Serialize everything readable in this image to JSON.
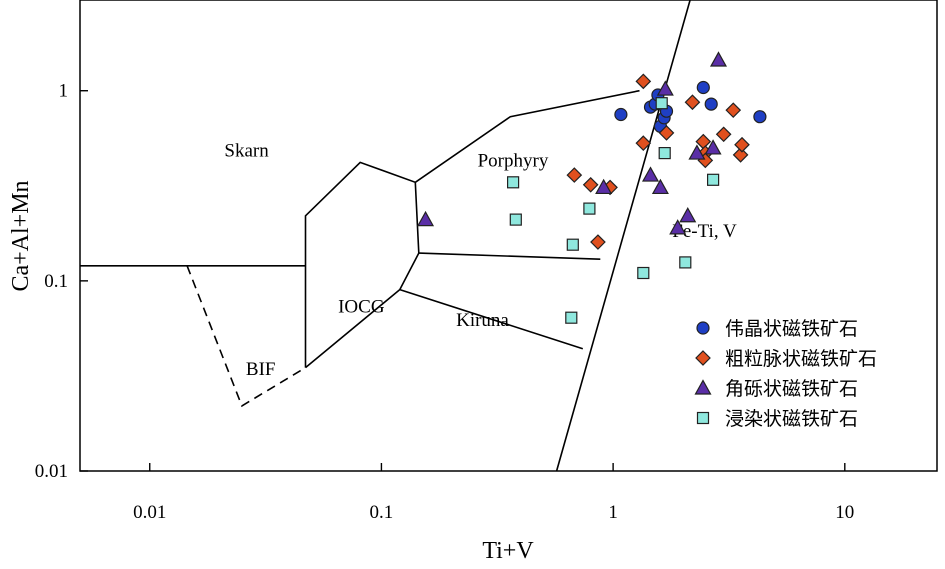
{
  "chart_data": {
    "type": "scatter",
    "x_scale": "log",
    "y_scale": "log",
    "xlabel": "Ti+V",
    "ylabel": "Ca+Al+Mn",
    "xlim": [
      0.005,
      25
    ],
    "ylim": [
      0.01,
      3
    ],
    "x_ticks": [
      {
        "value": 0.01,
        "label": "0.01"
      },
      {
        "value": 0.1,
        "label": "0.1"
      },
      {
        "value": 1,
        "label": "1"
      },
      {
        "value": 10,
        "label": "10"
      }
    ],
    "y_ticks": [
      {
        "value": 0.01,
        "label": "0.01"
      },
      {
        "value": 0.1,
        "label": "0.1"
      },
      {
        "value": 1,
        "label": "1"
      }
    ],
    "region_labels": [
      {
        "text": "Skarn",
        "x": 0.021,
        "y": 0.45
      },
      {
        "text": "IOCG",
        "x": 0.065,
        "y": 0.068
      },
      {
        "text": "BIF",
        "x": 0.026,
        "y": 0.032
      },
      {
        "text": "Kiruna",
        "x": 0.21,
        "y": 0.058
      },
      {
        "text": "Porphyry",
        "x": 0.26,
        "y": 0.4
      },
      {
        "text": "Fe-Ti, V",
        "x": 1.8,
        "y": 0.17
      }
    ],
    "boundaries": [
      {
        "name": "fe-ti-divider",
        "style": "solid",
        "points": [
          [
            0.57,
            0.01
          ],
          [
            2.15,
            3.0
          ]
        ]
      },
      {
        "name": "skarn-bif-divider",
        "style": "solid",
        "points": [
          [
            0.005,
            0.12
          ],
          [
            0.047,
            0.12
          ]
        ]
      },
      {
        "name": "iocg-outline",
        "style": "solid",
        "points": [
          [
            0.047,
            0.035
          ],
          [
            0.047,
            0.22
          ],
          [
            0.081,
            0.42
          ],
          [
            0.14,
            0.33
          ],
          [
            0.145,
            0.14
          ],
          [
            0.12,
            0.09
          ],
          [
            0.047,
            0.035
          ]
        ]
      },
      {
        "name": "porphyry-upper",
        "style": "solid",
        "points": [
          [
            0.14,
            0.33
          ],
          [
            0.36,
            0.73
          ],
          [
            1.3,
            1.0
          ]
        ]
      },
      {
        "name": "porphyry-kiruna-divider",
        "style": "solid",
        "points": [
          [
            0.145,
            0.14
          ],
          [
            0.88,
            0.13
          ]
        ]
      },
      {
        "name": "kiruna-lower",
        "style": "solid",
        "points": [
          [
            0.12,
            0.09
          ],
          [
            0.74,
            0.044
          ]
        ]
      },
      {
        "name": "bif-dashed",
        "style": "dashed",
        "points": [
          [
            0.0145,
            0.12
          ],
          [
            0.025,
            0.022
          ],
          [
            0.047,
            0.035
          ]
        ]
      }
    ],
    "series": [
      {
        "name": "伟晶状磁铁矿石",
        "marker": "circle",
        "color": "#1f3fc4",
        "points": [
          [
            1.08,
            0.75
          ],
          [
            1.45,
            0.82
          ],
          [
            1.52,
            0.85
          ],
          [
            1.56,
            0.95
          ],
          [
            1.6,
            0.65
          ],
          [
            1.66,
            0.72
          ],
          [
            1.7,
            0.78
          ],
          [
            2.45,
            1.04
          ],
          [
            2.65,
            0.85
          ],
          [
            4.3,
            0.73
          ]
        ]
      },
      {
        "name": "粗粒脉状磁铁矿石",
        "marker": "diamond",
        "color": "#e0501e",
        "points": [
          [
            0.68,
            0.36
          ],
          [
            0.8,
            0.32
          ],
          [
            0.97,
            0.31
          ],
          [
            0.86,
            0.16
          ],
          [
            1.35,
            1.12
          ],
          [
            1.35,
            0.53
          ],
          [
            1.7,
            0.6
          ],
          [
            2.2,
            0.87
          ],
          [
            2.45,
            0.54
          ],
          [
            2.5,
            0.47
          ],
          [
            2.5,
            0.43
          ],
          [
            3.0,
            0.59
          ],
          [
            3.3,
            0.79
          ],
          [
            3.55,
            0.46
          ],
          [
            3.6,
            0.52
          ]
        ]
      },
      {
        "name": "角砾状磁铁矿石",
        "marker": "triangle",
        "color": "#5a2ea6",
        "points": [
          [
            0.155,
            0.21
          ],
          [
            0.91,
            0.31
          ],
          [
            1.45,
            0.36
          ],
          [
            1.6,
            0.31
          ],
          [
            1.68,
            1.02
          ],
          [
            1.9,
            0.19
          ],
          [
            2.1,
            0.22
          ],
          [
            2.3,
            0.47
          ],
          [
            2.7,
            0.5
          ],
          [
            2.85,
            1.45
          ]
        ]
      },
      {
        "name": "浸染状磁铁矿石",
        "marker": "square",
        "color": "#8fe8de",
        "points": [
          [
            0.37,
            0.33
          ],
          [
            0.38,
            0.21
          ],
          [
            0.67,
            0.155
          ],
          [
            0.66,
            0.064
          ],
          [
            0.79,
            0.24
          ],
          [
            1.62,
            0.86
          ],
          [
            1.67,
            0.47
          ],
          [
            1.35,
            0.11
          ],
          [
            2.05,
            0.125
          ],
          [
            2.7,
            0.34
          ]
        ]
      }
    ],
    "legend_position": "bottom-right"
  }
}
